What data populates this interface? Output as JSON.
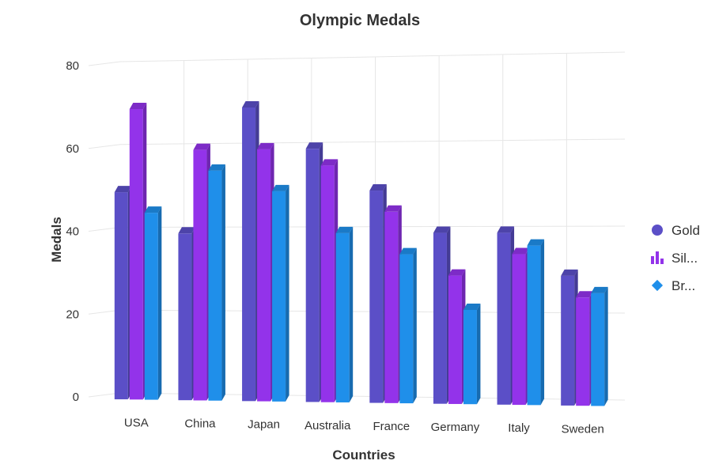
{
  "chart_data": {
    "type": "bar",
    "title": "Olympic Medals",
    "xlabel": "Countries",
    "ylabel": "Medals",
    "categories": [
      "USA",
      "China",
      "Japan",
      "Australia",
      "France",
      "Germany",
      "Italy",
      "Sweden"
    ],
    "series": [
      {
        "name": "Gold",
        "legend_label": "Gold",
        "color": "#5B4FC7",
        "values": [
          50,
          40,
          70,
          60,
          50,
          40,
          40,
          30
        ]
      },
      {
        "name": "Silver",
        "legend_label": "Sil...",
        "color": "#9333EA",
        "values": [
          70,
          60,
          60,
          56,
          45,
          30,
          35,
          25
        ]
      },
      {
        "name": "Bronze",
        "legend_label": "Br...",
        "color": "#1F8FEA",
        "values": [
          45,
          55,
          50,
          40,
          35,
          22,
          37,
          26
        ]
      }
    ],
    "ylim": [
      0,
      80
    ],
    "yticks": [
      0,
      20,
      40,
      60,
      80
    ],
    "grid": true,
    "legend_position": "right",
    "view": "3d"
  },
  "legend_icons": [
    "circle-icon",
    "bar-chart-icon",
    "diamond-icon"
  ]
}
